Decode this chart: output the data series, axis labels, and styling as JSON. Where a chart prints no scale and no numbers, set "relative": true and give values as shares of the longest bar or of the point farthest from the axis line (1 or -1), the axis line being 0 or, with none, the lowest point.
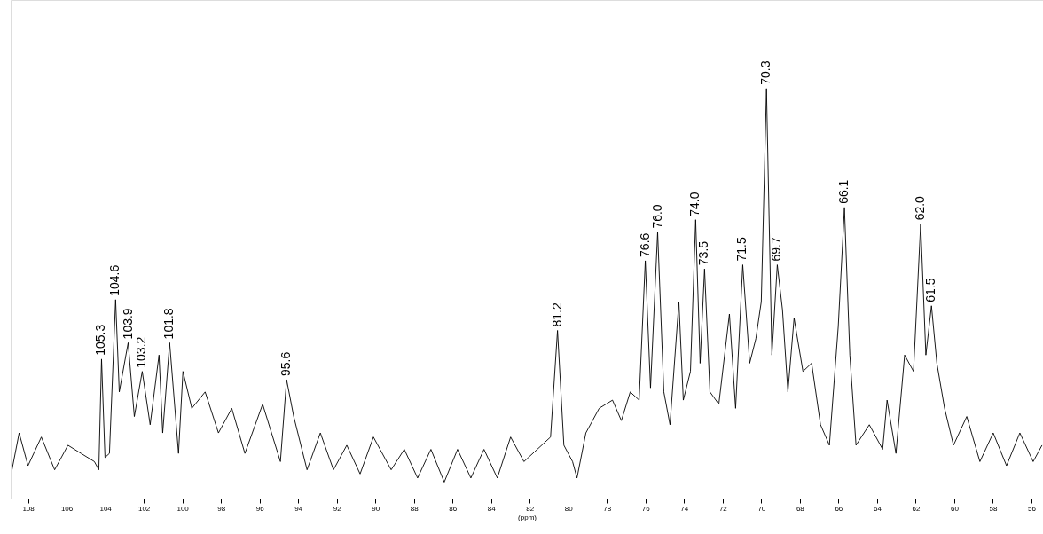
{
  "chart_data": {
    "type": "line",
    "relative": true,
    "xlabel": "(ppm)",
    "xlim": [
      108.9,
      55.4
    ],
    "xticks": [
      108,
      106,
      104,
      102,
      100,
      98,
      96,
      94,
      92,
      90,
      88,
      86,
      84,
      82,
      80,
      78,
      76,
      74,
      72,
      70,
      68,
      66,
      64,
      62,
      60,
      58,
      56
    ],
    "grid": false,
    "marker": "none",
    "line_style": "solid",
    "x": [
      108.83,
      108.46,
      108.0,
      107.31,
      106.62,
      105.93,
      105.25,
      104.56,
      104.33,
      104.19,
      104.01,
      103.78,
      103.46,
      103.27,
      102.81,
      102.49,
      102.08,
      101.67,
      101.21,
      101.02,
      100.66,
      100.2,
      99.97,
      99.51,
      98.82,
      98.13,
      97.44,
      96.76,
      95.84,
      95.38,
      94.92,
      94.6,
      94.23,
      93.54,
      92.85,
      92.17,
      91.48,
      90.79,
      90.1,
      89.18,
      88.5,
      87.81,
      87.12,
      86.43,
      85.74,
      85.05,
      84.37,
      83.68,
      82.99,
      82.3,
      81.61,
      80.92,
      80.56,
      80.23,
      79.78,
      79.55,
      79.09,
      78.4,
      77.71,
      77.25,
      76.79,
      76.33,
      76.01,
      75.74,
      75.37,
      75.05,
      74.73,
      74.27,
      74.04,
      73.67,
      73.4,
      73.17,
      72.94,
      72.66,
      72.2,
      71.65,
      71.33,
      70.96,
      70.6,
      70.28,
      70.0,
      69.73,
      69.45,
      69.17,
      68.9,
      68.62,
      68.3,
      67.84,
      67.39,
      66.93,
      66.47,
      66.01,
      65.69,
      65.41,
      65.09,
      64.4,
      63.71,
      63.48,
      63.02,
      62.57,
      62.11,
      61.74,
      61.47,
      61.18,
      60.9,
      60.5,
      60.04,
      59.35,
      58.67,
      57.98,
      57.29,
      56.6,
      55.91,
      55.45
    ],
    "series": [
      {
        "color": "#000000",
        "values": [
          0.07,
          0.16,
          0.08,
          0.15,
          0.07,
          0.13,
          0.11,
          0.09,
          0.07,
          0.34,
          0.1,
          0.11,
          0.485,
          0.26,
          0.38,
          0.2,
          0.31,
          0.18,
          0.35,
          0.16,
          0.38,
          0.11,
          0.31,
          0.22,
          0.26,
          0.16,
          0.22,
          0.11,
          0.23,
          0.16,
          0.09,
          0.29,
          0.2,
          0.07,
          0.16,
          0.07,
          0.13,
          0.06,
          0.15,
          0.07,
          0.12,
          0.05,
          0.12,
          0.04,
          0.12,
          0.05,
          0.12,
          0.05,
          0.15,
          0.09,
          0.12,
          0.15,
          0.41,
          0.13,
          0.09,
          0.05,
          0.16,
          0.22,
          0.24,
          0.19,
          0.26,
          0.24,
          0.58,
          0.27,
          0.65,
          0.26,
          0.18,
          0.48,
          0.24,
          0.31,
          0.68,
          0.33,
          0.56,
          0.26,
          0.23,
          0.45,
          0.22,
          0.57,
          0.33,
          0.39,
          0.48,
          1,
          0.35,
          0.57,
          0.46,
          0.26,
          0.44,
          0.31,
          0.33,
          0.18,
          0.13,
          0.42,
          0.71,
          0.35,
          0.13,
          0.18,
          0.12,
          0.24,
          0.11,
          0.35,
          0.31,
          0.67,
          0.35,
          0.47,
          0.33,
          0.22,
          0.13,
          0.2,
          0.09,
          0.16,
          0.08,
          0.16,
          0.09,
          0.13
        ]
      }
    ],
    "annotations": [
      {
        "text": "105.3",
        "x": 104.19,
        "y": 0.34
      },
      {
        "text": "104.6",
        "x": 103.46,
        "y": 0.485
      },
      {
        "text": "103.9",
        "x": 102.81,
        "y": 0.38
      },
      {
        "text": "103.2",
        "x": 102.08,
        "y": 0.31
      },
      {
        "text": "101.8",
        "x": 100.66,
        "y": 0.38
      },
      {
        "text": "95.6",
        "x": 94.6,
        "y": 0.29
      },
      {
        "text": "81.2",
        "x": 80.56,
        "y": 0.41
      },
      {
        "text": "76.6",
        "x": 76.01,
        "y": 0.58
      },
      {
        "text": "76.0",
        "x": 75.37,
        "y": 0.65
      },
      {
        "text": "74.0",
        "x": 73.4,
        "y": 0.68
      },
      {
        "text": "73.5",
        "x": 72.94,
        "y": 0.56
      },
      {
        "text": "71.5",
        "x": 70.96,
        "y": 0.57
      },
      {
        "text": "70.3",
        "x": 69.73,
        "y": 1
      },
      {
        "text": "69.7",
        "x": 69.17,
        "y": 0.57
      },
      {
        "text": "66.1",
        "x": 65.69,
        "y": 0.71
      },
      {
        "text": "62.0",
        "x": 61.74,
        "y": 0.67
      },
      {
        "text": "61.5",
        "x": 61.18,
        "y": 0.47
      }
    ]
  }
}
